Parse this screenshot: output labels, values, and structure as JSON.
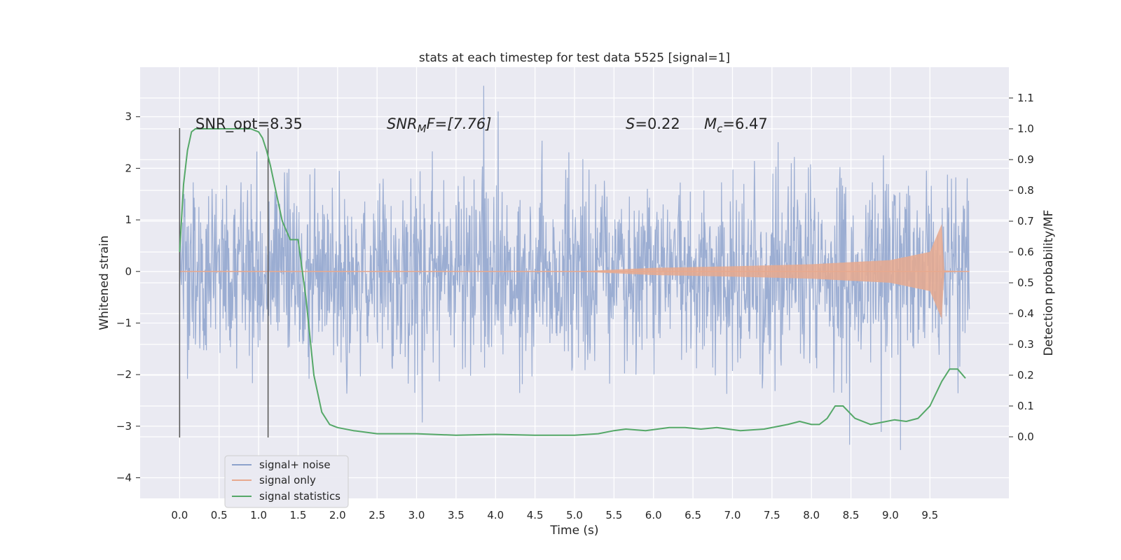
{
  "chart_data": {
    "type": "line",
    "title": "stats at each timestep for test data 5525 [signal=1]",
    "xlabel": "Time (s)",
    "ylabel_left": "Whitened strain",
    "ylabel_right": "Detection probability/MF",
    "xlim": [
      -0.5,
      10.5
    ],
    "ylim_left": [
      -4.4,
      3.96
    ],
    "ylim_right": [
      -0.2,
      1.2
    ],
    "x_ticks": [
      "0.0",
      "0.5",
      "1.0",
      "1.5",
      "2.0",
      "2.5",
      "3.0",
      "3.5",
      "4.0",
      "4.5",
      "5.0",
      "5.5",
      "6.0",
      "6.5",
      "7.0",
      "7.5",
      "8.0",
      "8.5",
      "9.0",
      "9.5"
    ],
    "x_tick_values": [
      0,
      0.5,
      1,
      1.5,
      2,
      2.5,
      3,
      3.5,
      4,
      4.5,
      5,
      5.5,
      6,
      6.5,
      7,
      7.5,
      8,
      8.5,
      9,
      9.5
    ],
    "y_ticks_left": [
      "3",
      "2",
      "1",
      "0",
      "−1",
      "−2",
      "−3",
      "−4"
    ],
    "y_tick_values_left": [
      3,
      2,
      1,
      0,
      -1,
      -2,
      -3,
      -4
    ],
    "y_ticks_right": [
      "1.1",
      "1.0",
      "0.9",
      "0.8",
      "0.7",
      "0.6",
      "0.5",
      "0.4",
      "0.3",
      "0.2",
      "0.1",
      "0.0"
    ],
    "y_tick_values_right": [
      1.1,
      1.0,
      0.9,
      0.8,
      0.7,
      0.6,
      0.5,
      0.4,
      0.3,
      0.2,
      0.1,
      0.0
    ],
    "grid": true,
    "legend_position": "lower-left",
    "annotations": {
      "snr_opt": "SNR_opt=8.35",
      "snr_mf_base": "SNR",
      "snr_mf_sub": "M",
      "snr_mf_rest": "F=[7.76]",
      "s_base": "S",
      "s_rest": "=0.22",
      "mc_base": "M",
      "mc_sub": "c",
      "mc_rest": "=6.47"
    },
    "vertical_markers": [
      {
        "x": 0.0,
        "y_range": [
          -3.22,
          2.78
        ]
      },
      {
        "x": 1.12,
        "y_range": [
          -3.22,
          2.78
        ]
      }
    ],
    "series": [
      {
        "name": "signal+ noise",
        "color": "#8da2cc",
        "x_range": [
          0,
          10
        ],
        "typical_amplitude": 1.55,
        "max": 3.6,
        "min": -4.0,
        "description_values": "noisy whitened strain between about -1.5 and 1.5 with spikes to ±3"
      },
      {
        "name": "signal only",
        "color": "#e8a98e",
        "envelope_x": [
          0,
          5.0,
          6.0,
          7.0,
          8.0,
          9.0,
          9.5,
          9.65,
          9.68,
          10
        ],
        "envelope_y": [
          0.0,
          0.0,
          0.07,
          0.1,
          0.14,
          0.22,
          0.38,
          0.92,
          0.02,
          0.0
        ]
      },
      {
        "name": "signal statistics",
        "color": "#55a868",
        "x": [
          0,
          0.05,
          0.1,
          0.15,
          0.2,
          0.3,
          0.45,
          0.7,
          0.9,
          1.0,
          1.05,
          1.1,
          1.15,
          1.2,
          1.3,
          1.4,
          1.5,
          1.6,
          1.7,
          1.8,
          1.9,
          2.0,
          2.2,
          2.5,
          3.0,
          3.5,
          4.0,
          4.5,
          5.0,
          5.3,
          5.5,
          5.65,
          5.9,
          6.2,
          6.4,
          6.6,
          6.8,
          7.1,
          7.4,
          7.7,
          7.85,
          8.0,
          8.1,
          8.2,
          8.3,
          8.4,
          8.55,
          8.75,
          8.95,
          9.05,
          9.2,
          9.35,
          9.5,
          9.65,
          9.75,
          9.85,
          9.95
        ],
        "values": [
          0.6,
          0.82,
          0.93,
          0.99,
          1.0,
          1.0,
          1.0,
          1.0,
          1.0,
          0.99,
          0.97,
          0.93,
          0.88,
          0.82,
          0.7,
          0.64,
          0.64,
          0.45,
          0.2,
          0.08,
          0.04,
          0.03,
          0.02,
          0.01,
          0.01,
          0.005,
          0.008,
          0.005,
          0.005,
          0.01,
          0.02,
          0.025,
          0.02,
          0.03,
          0.03,
          0.025,
          0.03,
          0.02,
          0.025,
          0.04,
          0.05,
          0.04,
          0.04,
          0.06,
          0.1,
          0.1,
          0.06,
          0.04,
          0.05,
          0.055,
          0.05,
          0.06,
          0.1,
          0.18,
          0.22,
          0.22,
          0.19
        ]
      }
    ]
  }
}
